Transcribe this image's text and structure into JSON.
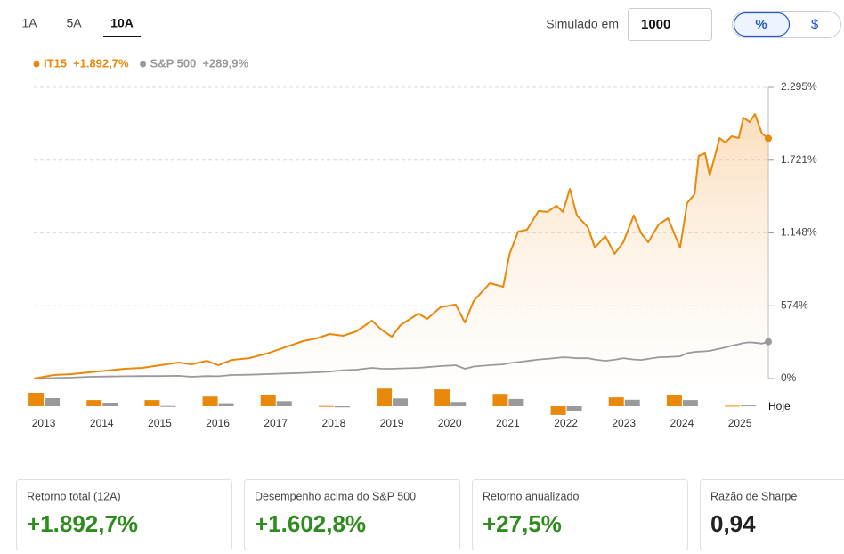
{
  "tabs": [
    {
      "label": "1A",
      "active": false
    },
    {
      "label": "5A",
      "active": false
    },
    {
      "label": "10A",
      "active": true
    }
  ],
  "simulation": {
    "label": "Simulado em",
    "amount": 1000
  },
  "toggle": [
    {
      "label": "%",
      "active": true
    },
    {
      "label": "$",
      "active": false
    }
  ],
  "chart_data": {
    "type": "line",
    "x": [
      2012.83,
      2013.17,
      2013.48,
      2013.78,
      2014.09,
      2014.4,
      2014.7,
      2015.01,
      2015.32,
      2015.55,
      2015.81,
      2016.01,
      2016.24,
      2016.54,
      2016.85,
      2017.16,
      2017.47,
      2017.7,
      2017.93,
      2018.16,
      2018.39,
      2018.66,
      2018.82,
      2019.0,
      2019.15,
      2019.46,
      2019.61,
      2019.84,
      2020.1,
      2020.26,
      2020.41,
      2020.69,
      2020.92,
      2021.03,
      2021.18,
      2021.33,
      2021.53,
      2021.68,
      2021.84,
      2021.95,
      2022.07,
      2022.19,
      2022.38,
      2022.5,
      2022.68,
      2022.84,
      2022.99,
      2023.17,
      2023.3,
      2023.42,
      2023.6,
      2023.76,
      2023.97,
      2024.09,
      2024.22,
      2024.29,
      2024.4,
      2024.48,
      2024.65,
      2024.75,
      2024.86,
      2024.98,
      2025.06,
      2025.17,
      2025.26,
      2025.38,
      2025.49
    ],
    "series": [
      {
        "name": "IT15",
        "legend_value": "+1.892,7%",
        "color": "#e8890c",
        "values": [
          0,
          28,
          35,
          49,
          63,
          77,
          84,
          105,
          126,
          112,
          140,
          105,
          147,
          161,
          197,
          246,
          295,
          316,
          351,
          337,
          372,
          456,
          386,
          330,
          421,
          512,
          470,
          562,
          583,
          442,
          611,
          751,
          723,
          983,
          1158,
          1172,
          1320,
          1313,
          1362,
          1313,
          1495,
          1285,
          1193,
          1032,
          1123,
          983,
          1074,
          1285,
          1144,
          1074,
          1214,
          1263,
          1032,
          1383,
          1453,
          1755,
          1776,
          1600,
          1895,
          1860,
          1909,
          1895,
          2056,
          2021,
          2084,
          1930,
          1892.7
        ],
        "annual_returns": [
          50,
          23,
          23,
          36,
          43,
          1,
          66,
          63,
          46,
          -33,
          33,
          43,
          2
        ]
      },
      {
        "name": "S&P 500",
        "legend_value": "+289,9%",
        "color": "#9a9a9a",
        "values": [
          0,
          4,
          8,
          14,
          16,
          18,
          20,
          20,
          22,
          14,
          20,
          18,
          28,
          30,
          35,
          40,
          45,
          49,
          55,
          65,
          70,
          84,
          78,
          77,
          80,
          84,
          90,
          98,
          105,
          77,
          95,
          105,
          112,
          122,
          130,
          138,
          150,
          155,
          162,
          168,
          165,
          160,
          161,
          150,
          140,
          148,
          161,
          150,
          147,
          155,
          168,
          170,
          175,
          200,
          210,
          212,
          215,
          218,
          235,
          245,
          259,
          270,
          280,
          285,
          282,
          275,
          289.9
        ],
        "annual_returns": [
          30,
          13,
          1,
          8,
          19,
          -4,
          29,
          16,
          27,
          -19,
          24,
          23,
          3
        ]
      }
    ],
    "xlim": [
      2012.83,
      2025.49
    ],
    "xticks": [
      2013,
      2014,
      2015,
      2016,
      2017,
      2018,
      2019,
      2020,
      2021,
      2022,
      2023,
      2024,
      2025
    ],
    "ylim": [
      0,
      2295
    ],
    "yticks": [
      {
        "value": 0,
        "label": "0%"
      },
      {
        "value": 574,
        "label": "574%"
      },
      {
        "value": 1148,
        "label": "1.148%"
      },
      {
        "value": 1721,
        "label": "1.721%"
      },
      {
        "value": 2295,
        "label": "2.295%"
      }
    ],
    "grid": true,
    "end_label": "Hoje"
  },
  "stats": [
    {
      "label": "Retorno total (12A)",
      "value": "+1.892,7%",
      "positive": true
    },
    {
      "label": "Desempenho acima do S&P 500",
      "value": "+1.602,8%",
      "positive": true
    },
    {
      "label": "Retorno anualizado",
      "value": "+27,5%",
      "positive": true
    },
    {
      "label": "Razão de Sharpe",
      "value": "0,94",
      "positive": false
    }
  ]
}
